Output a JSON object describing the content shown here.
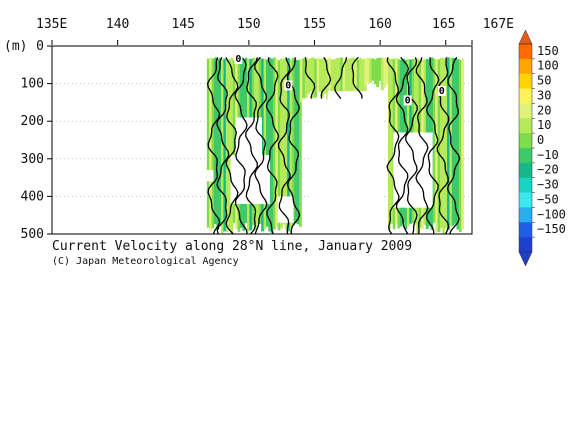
{
  "chart_data": {
    "type": "heatmap",
    "title": "Current Velocity along 28°N line, January 2009",
    "credit": "(C) Japan Meteorological Agency",
    "x_ticks": [
      {
        "value": 135,
        "label": "135E"
      },
      {
        "value": 140,
        "label": "140"
      },
      {
        "value": 145,
        "label": "145"
      },
      {
        "value": 150,
        "label": "150"
      },
      {
        "value": 155,
        "label": "155"
      },
      {
        "value": 160,
        "label": "160"
      },
      {
        "value": 165,
        "label": "165"
      },
      {
        "value": 167,
        "label": "167E"
      }
    ],
    "xlim": [
      135,
      167
    ],
    "y_unit": "(m)",
    "y_ticks": [
      {
        "value": 0,
        "label": "0"
      },
      {
        "value": 100,
        "label": "100"
      },
      {
        "value": 200,
        "label": "200"
      },
      {
        "value": 300,
        "label": "300"
      },
      {
        "value": 400,
        "label": "400"
      },
      {
        "value": 500,
        "label": "500"
      }
    ],
    "ylim": [
      0,
      500
    ],
    "y_inverted": true,
    "grid": "dotted horizontal",
    "contour_labels": [
      {
        "text": "0",
        "lon": 149.2,
        "depth": 40
      },
      {
        "text": "0",
        "lon": 153.0,
        "depth": 110
      },
      {
        "text": "0",
        "lon": 162.1,
        "depth": 150
      },
      {
        "text": "0",
        "lon": 164.7,
        "depth": 125
      }
    ],
    "colorbar": {
      "labels": [
        "150",
        "100",
        "50",
        "30",
        "20",
        "10",
        "0",
        "−10",
        "−20",
        "−30",
        "−50",
        "−100",
        "−150"
      ],
      "colors": [
        "#ff6a00",
        "#ffa600",
        "#ffd400",
        "#fff35c",
        "#e0f27a",
        "#b7ea5a",
        "#7fdc4a",
        "#3ec96a",
        "#16b88a",
        "#19d4c4",
        "#3ae8f0",
        "#28aef0",
        "#1f5fe8",
        "#1e3fd0"
      ]
    }
  }
}
